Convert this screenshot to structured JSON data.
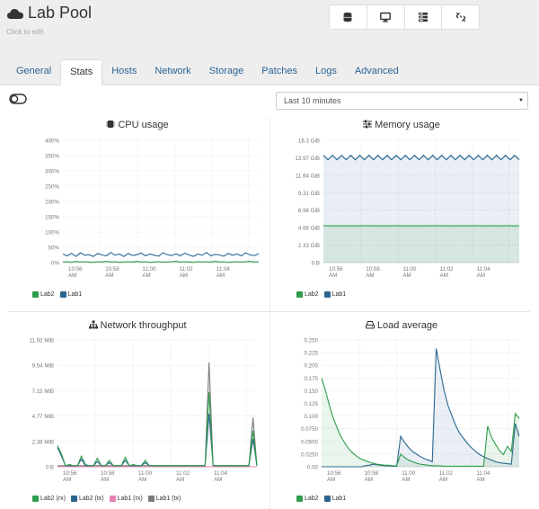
{
  "header": {
    "title": "Lab Pool",
    "subtitle": "Click to edit"
  },
  "toolbar": {
    "icons": [
      "database-icon",
      "desktop-icon",
      "server-stack-icon",
      "disconnect-icon"
    ]
  },
  "tabs": [
    "General",
    "Stats",
    "Hosts",
    "Network",
    "Storage",
    "Patches",
    "Logs",
    "Advanced"
  ],
  "active_tab": "Stats",
  "range_select": {
    "value": "Last 10 minutes"
  },
  "colors": {
    "green": "#2e9e4a",
    "blue": "#2c6690",
    "pink": "#e77fb3",
    "gray": "#7a7a7a",
    "accent": "#2a6496"
  },
  "chart_data": [
    {
      "id": "cpu",
      "title": "CPU usage",
      "type": "line",
      "x_ticks": [
        "10:56 AM",
        "10:58 AM",
        "11:00 AM",
        "11:02 AM",
        "11:04 AM"
      ],
      "y_ticks": [
        "0%",
        "50%",
        "100%",
        "150%",
        "200%",
        "250%",
        "300%",
        "350%",
        "400%"
      ],
      "ylim": [
        0,
        400
      ],
      "series": [
        {
          "name": "Lab2",
          "color": "#2e9e4a",
          "values": [
            2,
            3,
            1,
            4,
            2,
            3,
            2,
            1,
            3,
            2,
            4,
            2,
            3,
            1,
            2,
            3,
            2,
            4,
            2,
            3,
            1,
            2,
            3,
            2,
            2,
            3,
            4,
            2,
            3,
            2,
            1,
            3,
            2,
            3,
            2,
            4,
            2,
            3,
            1,
            2,
            3,
            2,
            3,
            4,
            2,
            3
          ]
        },
        {
          "name": "Lab1",
          "color": "#2c6690",
          "values": [
            28,
            22,
            30,
            20,
            32,
            24,
            26,
            20,
            30,
            25,
            22,
            33,
            24,
            28,
            20,
            30,
            23,
            26,
            31,
            22,
            28,
            24,
            21,
            32,
            26,
            23,
            29,
            22,
            31,
            25,
            20,
            28,
            24,
            33,
            22,
            27,
            25,
            21,
            30,
            24,
            28,
            22,
            32,
            25,
            23,
            29
          ]
        }
      ],
      "legend": [
        "Lab2",
        "Lab1"
      ],
      "grid": true
    },
    {
      "id": "memory",
      "title": "Memory usage",
      "type": "area",
      "x_ticks": [
        "10:56 AM",
        "10:58 AM",
        "11:00 AM",
        "11:02 AM",
        "11:04 AM"
      ],
      "y_ticks": [
        "0 B",
        "2.33 GiB",
        "4.66 GiB",
        "6.98 GiB",
        "9.31 GiB",
        "11.64 GiB",
        "13.97 GiB",
        "16.3 GiB"
      ],
      "ylim": [
        0,
        16.3
      ],
      "series": [
        {
          "name": "Lab2",
          "color": "#2e9e4a",
          "values": [
            4.9,
            4.9,
            4.9,
            4.9,
            4.9,
            4.9,
            4.9,
            4.9,
            4.9,
            4.9,
            4.9,
            4.9,
            4.9,
            4.9,
            4.9,
            4.9,
            4.9,
            4.9,
            4.9,
            4.9,
            4.9,
            4.9,
            4.9,
            4.9,
            4.9,
            4.9,
            4.9,
            4.9,
            4.9,
            4.9
          ]
        },
        {
          "name": "Lab1",
          "color": "#2c6690",
          "values": [
            14.3,
            13.7,
            14.3,
            13.7,
            14.3,
            13.7,
            14.3,
            13.7,
            14.3,
            13.7,
            14.3,
            13.7,
            14.3,
            13.7,
            14.3,
            13.7,
            14.3,
            13.7,
            14.3,
            13.7,
            14.3,
            13.7,
            14.3,
            13.7,
            14.3,
            13.7,
            14.3,
            13.7,
            14.3,
            13.7,
            14.3,
            13.7,
            14.3,
            13.7,
            14.3,
            13.7,
            14.3,
            13.7,
            14.3,
            13.7,
            14.3,
            13.7,
            14.3,
            13.7
          ]
        }
      ],
      "legend": [
        "Lab2",
        "Lab1"
      ],
      "grid": true
    },
    {
      "id": "network",
      "title": "Network throughput",
      "type": "line",
      "x_ticks": [
        "10:56 AM",
        "10:58 AM",
        "11:00 AM",
        "11:02 AM",
        "11:04 AM"
      ],
      "y_ticks": [
        "0 B",
        "2.38 MiB",
        "4.77 MiB",
        "7.15 MiB",
        "9.54 MiB",
        "11.92 MiB"
      ],
      "ylim": [
        0,
        11.92
      ],
      "series": [
        {
          "name": "Lab2 (rx)",
          "color": "#2e9e4a",
          "values": [
            2.0,
            1.2,
            0.1,
            0.2,
            0.1,
            0.1,
            1.0,
            0.2,
            0.1,
            0.1,
            0.8,
            0.1,
            0.1,
            0.6,
            0.1,
            0.1,
            0.1,
            0.9,
            0.1,
            0.2,
            0.1,
            0.1,
            0.6,
            0.1,
            0.1,
            0.1,
            0.1,
            0.1,
            0.1,
            0.1,
            0.1,
            0.1,
            0.1,
            0.1,
            0.1,
            0.1,
            0.1,
            0.1,
            7.0,
            0.1,
            0.1,
            0.1,
            0.1,
            0.1,
            0.1,
            0.1,
            0.1,
            0.1,
            0.1,
            3.4,
            0.1
          ]
        },
        {
          "name": "Lab2 (tx)",
          "color": "#2c6690",
          "values": [
            1.8,
            1.0,
            0.1,
            0.1,
            0.1,
            0.1,
            0.7,
            0.1,
            0.1,
            0.1,
            0.5,
            0.1,
            0.1,
            0.4,
            0.1,
            0.1,
            0.1,
            0.6,
            0.1,
            0.1,
            0.1,
            0.1,
            0.4,
            0.1,
            0.1,
            0.1,
            0.1,
            0.1,
            0.1,
            0.1,
            0.1,
            0.1,
            0.1,
            0.1,
            0.1,
            0.1,
            0.1,
            0.1,
            5.0,
            0.1,
            0.1,
            0.1,
            0.1,
            0.1,
            0.1,
            0.1,
            0.1,
            0.1,
            0.1,
            2.6,
            0.1
          ]
        },
        {
          "name": "Lab1 (rx)",
          "color": "#e77fb3",
          "values": [
            0,
            0,
            0,
            0,
            0,
            0,
            0,
            0,
            0,
            0,
            0,
            0,
            0,
            0,
            0,
            0,
            0,
            0,
            0,
            0,
            0,
            0,
            0,
            0,
            0,
            0,
            0,
            0,
            0,
            0,
            0,
            0,
            0,
            0,
            0,
            0,
            0,
            0,
            0,
            0,
            0,
            0,
            0,
            0,
            0,
            0,
            0,
            0,
            0,
            0,
            0
          ]
        },
        {
          "name": "Lab1 (tx)",
          "color": "#7a7a7a",
          "values": [
            0.1,
            0.1,
            0.1,
            0.1,
            0.1,
            0.1,
            0.1,
            0.1,
            0.1,
            0.1,
            0.1,
            0.1,
            0.1,
            0.1,
            0.1,
            0.1,
            0.1,
            0.1,
            0.1,
            0.1,
            0.1,
            0.1,
            0.1,
            0.1,
            0.1,
            0.1,
            0.1,
            0.1,
            0.1,
            0.1,
            0.1,
            0.1,
            0.1,
            0.1,
            0.1,
            0.1,
            0.1,
            0.1,
            9.8,
            0.1,
            0.1,
            0.1,
            0.1,
            0.1,
            0.1,
            0.1,
            0.1,
            0.1,
            0.1,
            4.6,
            0.1
          ]
        }
      ],
      "legend": [
        "Lab2 (rx)",
        "Lab2 (tx)",
        "Lab1 (rx)",
        "Lab1 (tx)"
      ],
      "grid": true
    },
    {
      "id": "load",
      "title": "Load average",
      "type": "area",
      "x_ticks": [
        "10:56 AM",
        "10:58 AM",
        "11:00 AM",
        "11:02 AM",
        "11:04 AM"
      ],
      "y_ticks": [
        "0.00",
        "0.0250",
        "0.0500",
        "0.0750",
        "0.100",
        "0.125",
        "0.150",
        "0.175",
        "0.200",
        "0.225",
        "0.250"
      ],
      "ylim": [
        0,
        0.25
      ],
      "series": [
        {
          "name": "Lab2",
          "color": "#2e9e4a",
          "values": [
            0.175,
            0.15,
            0.12,
            0.095,
            0.075,
            0.058,
            0.045,
            0.034,
            0.026,
            0.02,
            0.015,
            0.012,
            0.009,
            0.007,
            0.005,
            0.004,
            0.003,
            0.003,
            0.002,
            0.002,
            0.025,
            0.018,
            0.013,
            0.01,
            0.007,
            0.005,
            0.004,
            0.003,
            0.002,
            0.002,
            0.002,
            0.001,
            0.001,
            0.001,
            0.001,
            0.001,
            0.001,
            0.001,
            0.001,
            0.001,
            0.001,
            0.001,
            0.08,
            0.058,
            0.044,
            0.032,
            0.024,
            0.04,
            0.03,
            0.105,
            0.095
          ]
        },
        {
          "name": "Lab1",
          "color": "#2c6690",
          "values": [
            0.0,
            0.0,
            0.0,
            0.0,
            0.0,
            0.0,
            0.0,
            0.0,
            0.0,
            0.0,
            0.0,
            0.002,
            0.003,
            0.005,
            0.004,
            0.003,
            0.002,
            0.002,
            0.001,
            0.001,
            0.06,
            0.048,
            0.038,
            0.03,
            0.025,
            0.02,
            0.016,
            0.013,
            0.01,
            0.233,
            0.19,
            0.15,
            0.12,
            0.1,
            0.08,
            0.065,
            0.055,
            0.045,
            0.037,
            0.03,
            0.024,
            0.02,
            0.016,
            0.013,
            0.01,
            0.008,
            0.007,
            0.006,
            0.005,
            0.085,
            0.06
          ]
        }
      ],
      "legend": [
        "Lab2",
        "Lab1"
      ],
      "grid": true
    }
  ]
}
